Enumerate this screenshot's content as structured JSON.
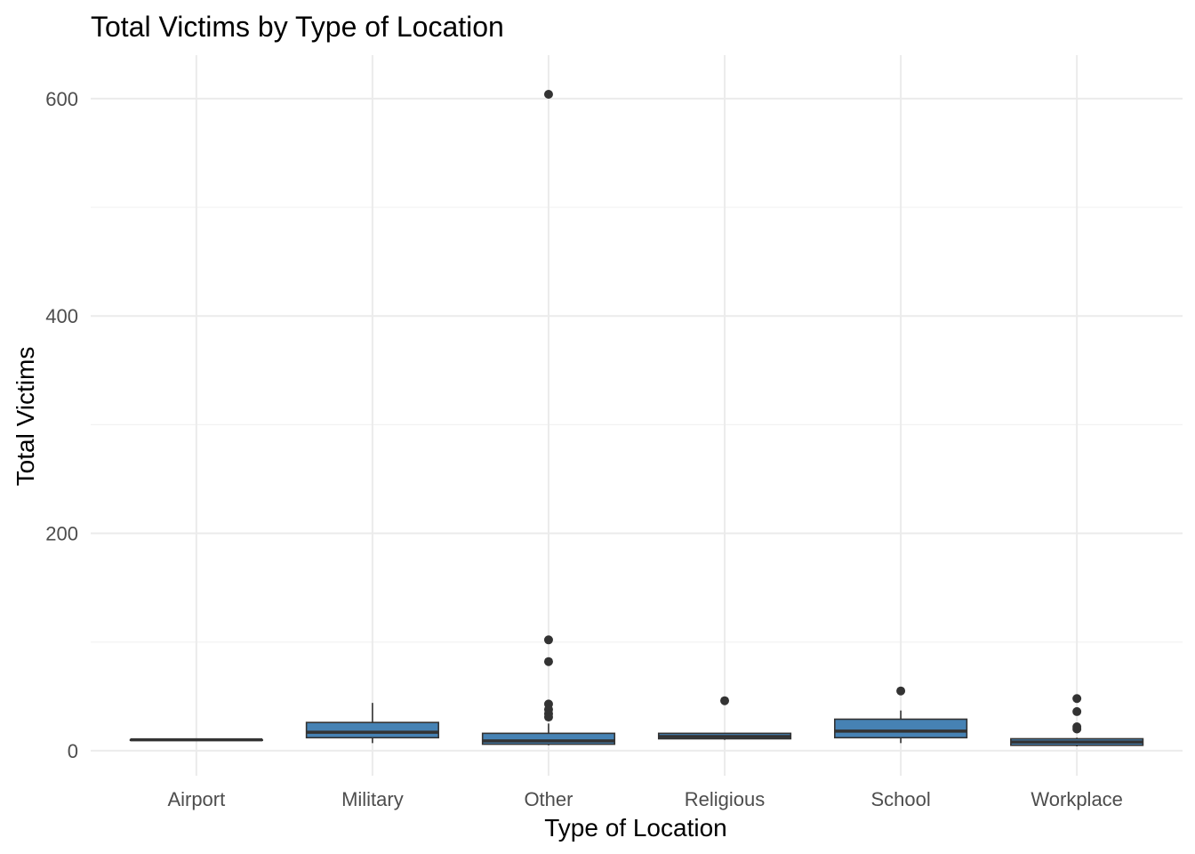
{
  "chart_data": {
    "type": "boxplot",
    "title": "Total Victims by Type of Location",
    "xlabel": "Type of Location",
    "ylabel": "Total Victims",
    "ylim": [
      -23,
      640
    ],
    "yticks": [
      0,
      200,
      400,
      600
    ],
    "grid": true,
    "legend": "none",
    "fill_color": "#4682B4",
    "line_color": "#333333",
    "categories": [
      "Airport",
      "Military",
      "Other",
      "Religious",
      "School",
      "Workplace"
    ],
    "boxes": [
      {
        "category": "Airport",
        "min": 10,
        "q1": 10,
        "median": 10,
        "q3": 10,
        "max": 10,
        "outliers": []
      },
      {
        "category": "Military",
        "min": 7,
        "q1": 12,
        "median": 17,
        "q3": 26,
        "max": 44,
        "outliers": []
      },
      {
        "category": "Other",
        "min": 5,
        "q1": 6,
        "median": 9,
        "q3": 16,
        "max": 25,
        "outliers": [
          604,
          102,
          82,
          43,
          38,
          34,
          31
        ]
      },
      {
        "category": "Religious",
        "min": 10,
        "q1": 11,
        "median": 13,
        "q3": 16,
        "max": 16,
        "outliers": [
          46
        ]
      },
      {
        "category": "School",
        "min": 7,
        "q1": 12,
        "median": 18,
        "q3": 29,
        "max": 37,
        "outliers": [
          55
        ]
      },
      {
        "category": "Workplace",
        "min": 4,
        "q1": 5,
        "median": 8,
        "q3": 11,
        "max": 12,
        "outliers": [
          48,
          36,
          22,
          20
        ]
      }
    ]
  }
}
